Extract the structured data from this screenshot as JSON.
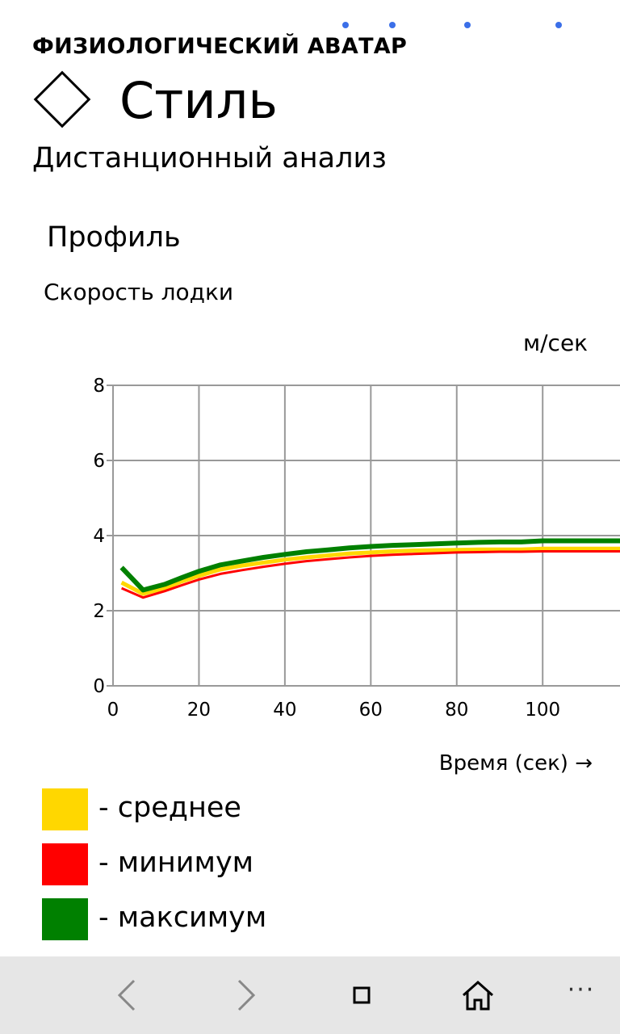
{
  "pager": {
    "dot_color": "#3b6fe8",
    "dot_count": 4
  },
  "header": {
    "app_title": "ФИЗИОЛОГИЧЕСКИЙ АВАТАР",
    "page_title": "Стиль",
    "subtitle": "Дистанционный анализ"
  },
  "section": {
    "title": "Профиль",
    "metric": "Скорость лодки",
    "unit": "м/сек"
  },
  "chart_data": {
    "type": "line",
    "title": "Скорость лодки",
    "xlabel": "Время (сек) →",
    "ylabel": "м/сек",
    "xlim": [
      0,
      118
    ],
    "ylim": [
      0,
      8
    ],
    "x_ticks": [
      "0",
      "20",
      "40",
      "60",
      "80",
      "100"
    ],
    "y_ticks": [
      "0",
      "2",
      "4",
      "6",
      "8"
    ],
    "grid": true,
    "series": [
      {
        "name": "- среднее",
        "color": "#ffd700",
        "x": [
          2,
          7,
          12,
          16,
          20,
          25,
          30,
          35,
          40,
          45,
          50,
          55,
          60,
          65,
          70,
          75,
          80,
          85,
          90,
          95,
          100,
          105,
          110,
          118
        ],
        "y": [
          2.75,
          2.45,
          2.6,
          2.78,
          2.93,
          3.1,
          3.2,
          3.28,
          3.36,
          3.42,
          3.47,
          3.52,
          3.55,
          3.58,
          3.6,
          3.61,
          3.62,
          3.63,
          3.63,
          3.63,
          3.65,
          3.65,
          3.65,
          3.65
        ]
      },
      {
        "name": "- минимум",
        "color": "#ff0000",
        "x": [
          2,
          7,
          12,
          16,
          20,
          25,
          30,
          35,
          40,
          45,
          50,
          55,
          60,
          65,
          70,
          75,
          80,
          85,
          90,
          95,
          100,
          105,
          110,
          118
        ],
        "y": [
          2.6,
          2.35,
          2.52,
          2.68,
          2.83,
          2.98,
          3.08,
          3.17,
          3.25,
          3.32,
          3.37,
          3.42,
          3.46,
          3.49,
          3.51,
          3.53,
          3.55,
          3.56,
          3.57,
          3.57,
          3.58,
          3.58,
          3.58,
          3.58
        ]
      },
      {
        "name": "- максимум",
        "color": "#008000",
        "x": [
          2,
          7,
          12,
          16,
          20,
          25,
          30,
          35,
          40,
          45,
          50,
          55,
          60,
          65,
          70,
          75,
          80,
          85,
          90,
          95,
          100,
          105,
          110,
          118
        ],
        "y": [
          3.15,
          2.55,
          2.7,
          2.88,
          3.05,
          3.22,
          3.32,
          3.42,
          3.5,
          3.57,
          3.62,
          3.67,
          3.71,
          3.74,
          3.76,
          3.78,
          3.8,
          3.82,
          3.83,
          3.83,
          3.86,
          3.86,
          3.86,
          3.86
        ]
      }
    ]
  },
  "nav": {
    "back_icon": "chevron-left-icon",
    "forward_icon": "chevron-right-icon",
    "tabs_icon": "square-icon",
    "home_icon": "home-icon",
    "more_label": "···"
  }
}
